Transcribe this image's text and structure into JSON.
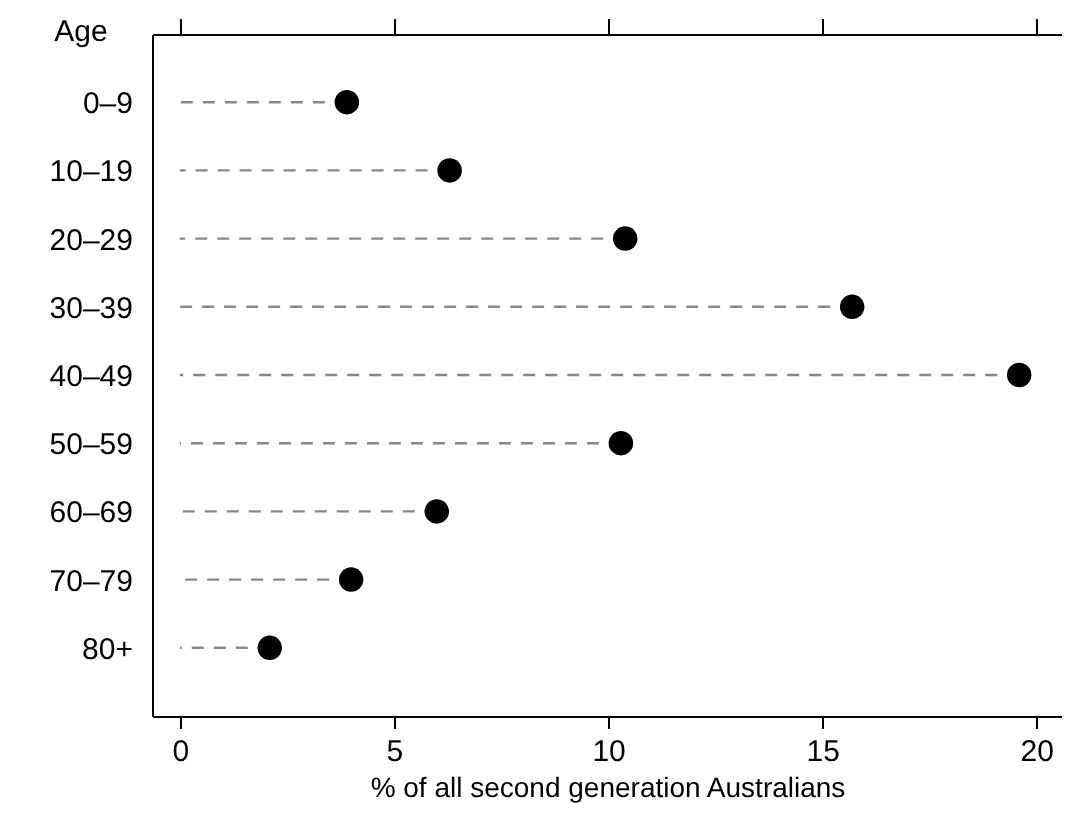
{
  "chart_data": {
    "type": "lollipop",
    "orientation": "horizontal",
    "categories": [
      "0–9",
      "10–19",
      "20–29",
      "30–39",
      "40–49",
      "50–59",
      "60–69",
      "70–79",
      "80+"
    ],
    "series": [
      {
        "color": "#000000",
        "values": [
          3.9,
          6.3,
          10.4,
          15.7,
          19.6,
          10.3,
          6.0,
          4.0,
          2.1
        ]
      }
    ],
    "xlabel": "% of all second generation Australians",
    "ylabel": "Age",
    "xlim": [
      -0.65,
      20.6
    ],
    "xticks": [
      0,
      5,
      10,
      15,
      20
    ],
    "marker": "circle",
    "line_style": "dashed",
    "grid": false
  }
}
